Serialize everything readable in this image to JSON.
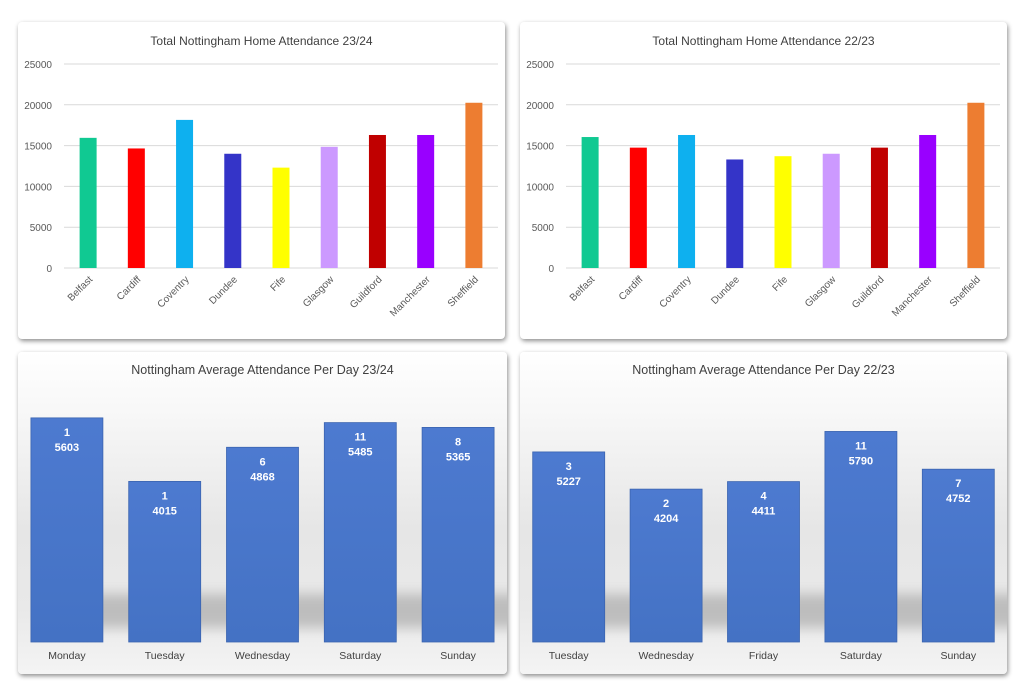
{
  "chart_data": [
    {
      "type": "bar",
      "title": "Total Nottingham Home Attendance 23/24",
      "categories": [
        "Belfast",
        "Cardiff",
        "Coventry",
        "Dundee",
        "Fife",
        "Glasgow",
        "Guildford",
        "Manchester",
        "Sheffield"
      ],
      "values": [
        15950,
        14650,
        18150,
        14000,
        12300,
        14850,
        16300,
        16300,
        20250
      ],
      "colors": [
        "#10c992",
        "#ff0000",
        "#0eb0ef",
        "#3434c8",
        "#ffff00",
        "#cc99ff",
        "#c00000",
        "#9900ff",
        "#ed7d31"
      ],
      "yticks": [
        "0",
        "5000",
        "10000",
        "15000",
        "20000",
        "25000"
      ],
      "ylim": [
        0,
        25000
      ],
      "grid": true,
      "legend": "none"
    },
    {
      "type": "bar",
      "title": "Total Nottingham Home Attendance 22/23",
      "categories": [
        "Belfast",
        "Cardiff",
        "Coventry",
        "Dundee",
        "Fife",
        "Glasgow",
        "Guildford",
        "Manchester",
        "Sheffield"
      ],
      "values": [
        16050,
        14750,
        16300,
        13300,
        13700,
        14000,
        14750,
        16300,
        20250
      ],
      "colors": [
        "#10c992",
        "#ff0000",
        "#0eb0ef",
        "#3434c8",
        "#ffff00",
        "#cc99ff",
        "#c00000",
        "#9900ff",
        "#ed7d31"
      ],
      "yticks": [
        "0",
        "5000",
        "10000",
        "15000",
        "20000",
        "25000"
      ],
      "ylim": [
        0,
        25000
      ],
      "grid": true,
      "legend": "none"
    },
    {
      "type": "bar",
      "title": "Nottingham Average Attendance Per Day 23/24",
      "categories": [
        "Monday",
        "Tuesday",
        "Wednesday",
        "Saturday",
        "Sunday"
      ],
      "values": [
        5603,
        4015,
        4868,
        5485,
        5365
      ],
      "counts": [
        1,
        1,
        6,
        11,
        8
      ],
      "color": "#4472c4",
      "ylim": [
        0,
        5800
      ],
      "grid": false,
      "legend": "none"
    },
    {
      "type": "bar",
      "title": "Nottingham Average Attendance Per Day 22/23",
      "categories": [
        "Tuesday",
        "Wednesday",
        "Friday",
        "Saturday",
        "Sunday"
      ],
      "values": [
        5227,
        4204,
        4411,
        5790,
        4752
      ],
      "counts": [
        3,
        2,
        4,
        11,
        7
      ],
      "color": "#4472c4",
      "ylim": [
        0,
        6380
      ],
      "grid": false,
      "legend": "none"
    }
  ]
}
